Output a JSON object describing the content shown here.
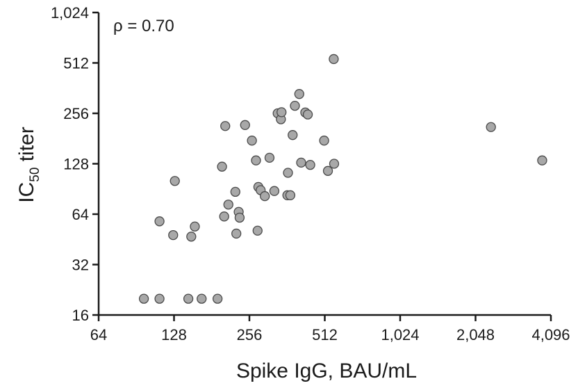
{
  "chart_data": {
    "type": "scatter",
    "annotation": "ρ = 0.70",
    "xlabel": "Spike IgG, BAU/mL",
    "ylabel_main": "IC",
    "ylabel_sub": "50",
    "ylabel_rest": " titer",
    "x_scale": "log2",
    "y_scale": "log2",
    "xlim": [
      64,
      4096
    ],
    "ylim": [
      16,
      1024
    ],
    "x_ticks": [
      {
        "value": 64,
        "label": "64"
      },
      {
        "value": 128,
        "label": "128"
      },
      {
        "value": 256,
        "label": "256"
      },
      {
        "value": 512,
        "label": "512"
      },
      {
        "value": 1024,
        "label": "1,024"
      },
      {
        "value": 2048,
        "label": "2,048"
      },
      {
        "value": 4096,
        "label": "4,096"
      }
    ],
    "y_ticks": [
      {
        "value": 16,
        "label": "16"
      },
      {
        "value": 32,
        "label": "32"
      },
      {
        "value": 64,
        "label": "64"
      },
      {
        "value": 128,
        "label": "128"
      },
      {
        "value": 256,
        "label": "256"
      },
      {
        "value": 512,
        "label": "512"
      },
      {
        "value": 1024,
        "label": "1,024"
      }
    ],
    "marker_color": "#a8a8a8",
    "marker_edge": "#4a4a4a",
    "points": [
      {
        "x": 97,
        "y": 20
      },
      {
        "x": 112,
        "y": 20
      },
      {
        "x": 146,
        "y": 20
      },
      {
        "x": 165,
        "y": 20
      },
      {
        "x": 191,
        "y": 20
      },
      {
        "x": 112,
        "y": 58
      },
      {
        "x": 127,
        "y": 48
      },
      {
        "x": 129,
        "y": 101
      },
      {
        "x": 150,
        "y": 47
      },
      {
        "x": 155,
        "y": 54
      },
      {
        "x": 199,
        "y": 123
      },
      {
        "x": 203,
        "y": 62
      },
      {
        "x": 205,
        "y": 215
      },
      {
        "x": 211,
        "y": 73
      },
      {
        "x": 225,
        "y": 87
      },
      {
        "x": 227,
        "y": 49
      },
      {
        "x": 232,
        "y": 66
      },
      {
        "x": 234,
        "y": 61
      },
      {
        "x": 246,
        "y": 218
      },
      {
        "x": 262,
        "y": 176
      },
      {
        "x": 272,
        "y": 134
      },
      {
        "x": 276,
        "y": 51
      },
      {
        "x": 278,
        "y": 93
      },
      {
        "x": 284,
        "y": 89
      },
      {
        "x": 295,
        "y": 82
      },
      {
        "x": 308,
        "y": 139
      },
      {
        "x": 322,
        "y": 88
      },
      {
        "x": 332,
        "y": 256
      },
      {
        "x": 342,
        "y": 236
      },
      {
        "x": 344,
        "y": 260
      },
      {
        "x": 363,
        "y": 83
      },
      {
        "x": 365,
        "y": 113
      },
      {
        "x": 373,
        "y": 83
      },
      {
        "x": 381,
        "y": 190
      },
      {
        "x": 389,
        "y": 284
      },
      {
        "x": 405,
        "y": 334
      },
      {
        "x": 412,
        "y": 130
      },
      {
        "x": 428,
        "y": 259
      },
      {
        "x": 438,
        "y": 252
      },
      {
        "x": 448,
        "y": 126
      },
      {
        "x": 509,
        "y": 176
      },
      {
        "x": 527,
        "y": 116
      },
      {
        "x": 558,
        "y": 128
      },
      {
        "x": 556,
        "y": 540
      },
      {
        "x": 2360,
        "y": 212
      },
      {
        "x": 3780,
        "y": 134
      }
    ]
  }
}
